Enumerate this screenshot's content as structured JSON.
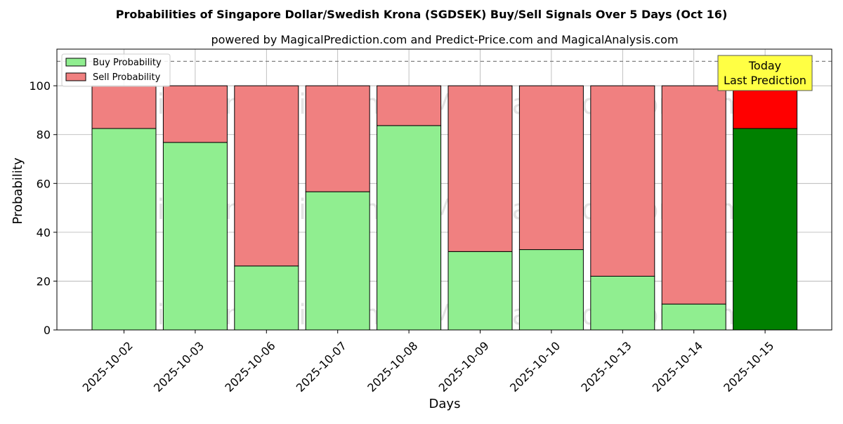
{
  "chart_data": {
    "type": "bar",
    "stacked": true,
    "title": "Probabilities of Singapore Dollar/Swedish Krona (SGDSEK) Buy/Sell Signals Over 5 Days (Oct 16)",
    "subtitle": "powered by MagicalPrediction.com and Predict-Price.com and MagicalAnalysis.com",
    "xlabel": "Days",
    "ylabel": "Probability",
    "ylim": [
      0,
      115
    ],
    "yticks": [
      0,
      20,
      40,
      60,
      80,
      100
    ],
    "reference_line": 110,
    "grid": true,
    "legend_placement": "top-left",
    "categories": [
      "2025-10-02",
      "2025-10-03",
      "2025-10-06",
      "2025-10-07",
      "2025-10-08",
      "2025-10-09",
      "2025-10-10",
      "2025-10-13",
      "2025-10-14",
      "2025-10-15"
    ],
    "series": [
      {
        "name": "Buy Probability",
        "color": "#90ee90",
        "values": [
          82.5,
          76.8,
          26.2,
          56.6,
          83.7,
          32.1,
          32.9,
          22.0,
          10.6,
          82.5
        ]
      },
      {
        "name": "Sell Probability",
        "color": "#f08080",
        "values": [
          17.5,
          23.2,
          73.8,
          43.4,
          16.3,
          67.9,
          67.1,
          78.0,
          89.4,
          17.5
        ]
      }
    ],
    "highlight": {
      "index": 9,
      "buy_color": "#008000",
      "sell_color": "#ff0000"
    },
    "annotation": {
      "line1": "Today",
      "line2": "Last Prediction",
      "bg_color": "#ffff44"
    },
    "watermarks": [
      "MagicalAnalysis.com",
      "MagicalPrediction.com"
    ]
  }
}
